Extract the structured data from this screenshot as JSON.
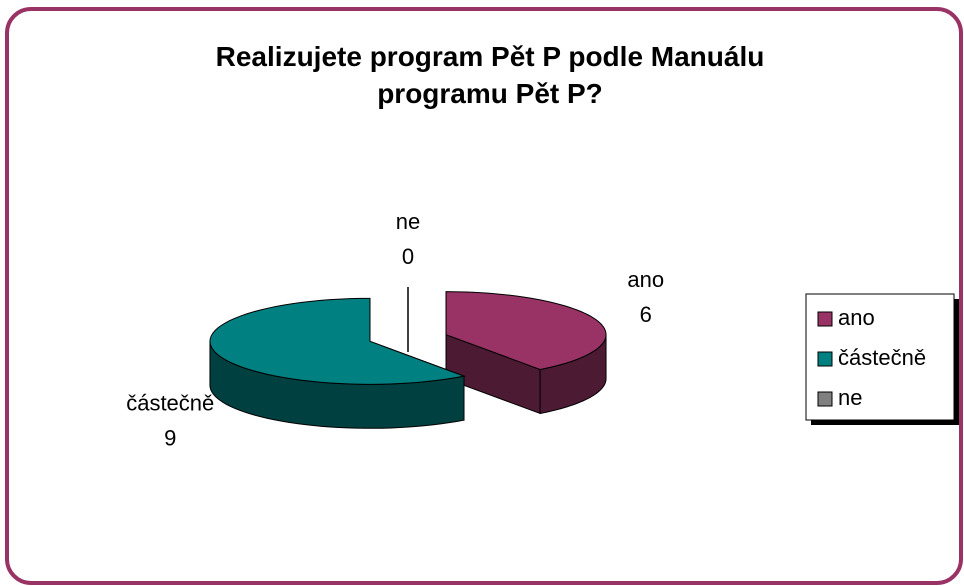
{
  "chart_data": {
    "type": "pie",
    "title": "Realizujete program Pět P podle Manuálu programu Pět P?",
    "categories": [
      "ano",
      "částečně",
      "ne"
    ],
    "values": [
      6,
      9,
      0
    ],
    "colors": [
      "#993366",
      "#008080",
      "#808080"
    ],
    "legend": "right"
  }
}
